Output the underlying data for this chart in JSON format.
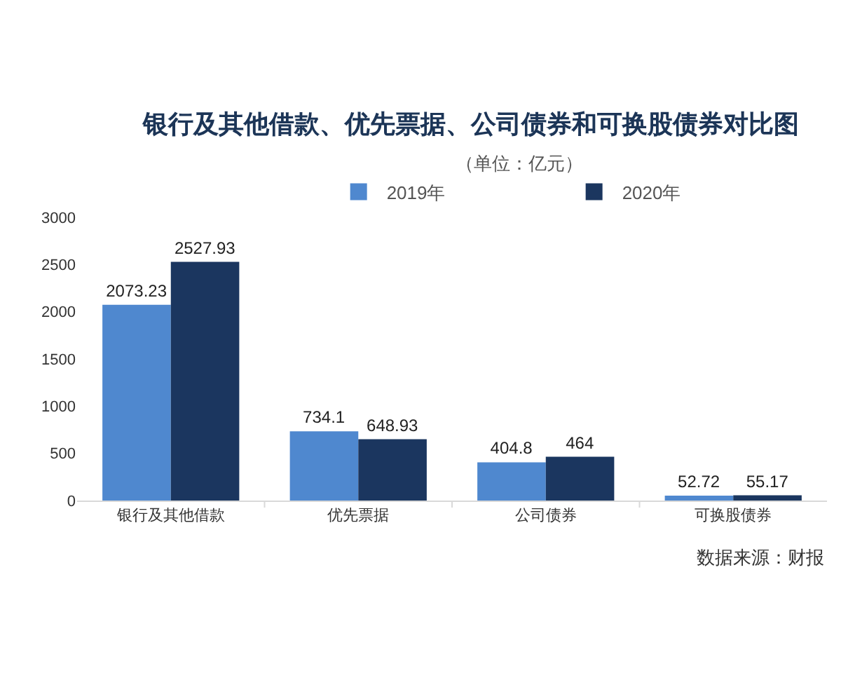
{
  "chart_data": {
    "type": "bar",
    "title": "银行及其他借款、优先票据、公司债券和可换股债券对比图",
    "subtitle": "（单位：亿元）",
    "categories": [
      "银行及其他借款",
      "优先票据",
      "公司债券",
      "可换股债券"
    ],
    "series": [
      {
        "name": "2019年",
        "color": "#4f88cf",
        "values": [
          2073.23,
          734.1,
          404.8,
          52.72
        ]
      },
      {
        "name": "2020年",
        "color": "#1b365f",
        "values": [
          2527.93,
          648.93,
          464,
          55.17
        ]
      }
    ],
    "ylim": [
      0,
      3000
    ],
    "yticks": [
      0,
      500,
      1000,
      1500,
      2000,
      2500,
      3000
    ],
    "data_labels": true,
    "legend": "top",
    "annotations": [
      "数据来源：财报"
    ]
  }
}
